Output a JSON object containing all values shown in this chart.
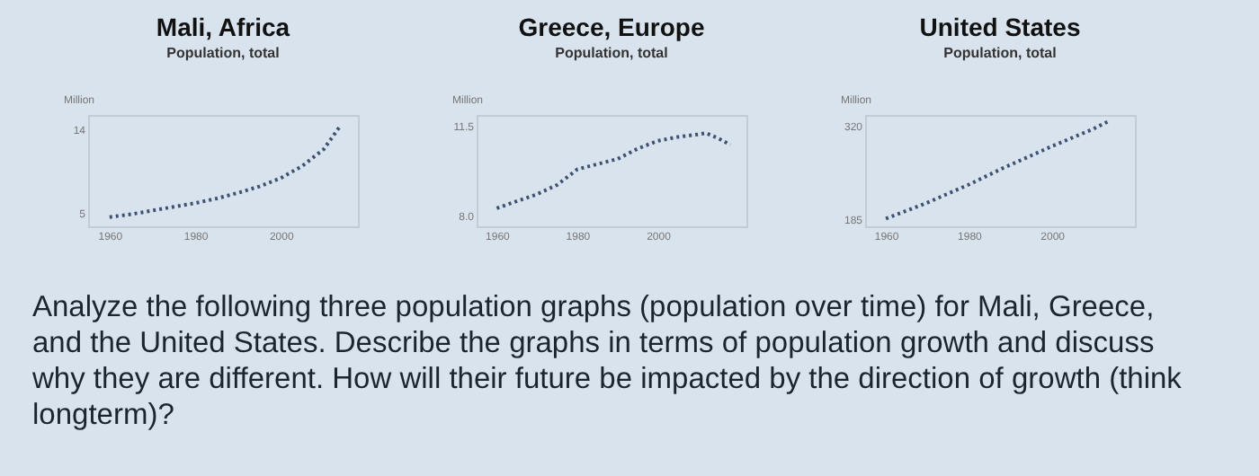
{
  "chart_data": [
    {
      "type": "line",
      "title": "Mali, Africa",
      "subtitle": "Population, total",
      "ylabel": "Million",
      "color": "#3d5273",
      "line_style": "dotted",
      "grid": false,
      "x": [
        1960,
        1965,
        1970,
        1975,
        1980,
        1985,
        1990,
        1995,
        2000,
        2005,
        2010,
        2014
      ],
      "values": [
        4.5,
        4.8,
        5.2,
        5.6,
        6.0,
        6.5,
        7.1,
        7.8,
        8.7,
        10.0,
        11.8,
        14.4
      ],
      "xlim": [
        1955,
        2018
      ],
      "xticks": [
        1960,
        1980,
        2000
      ],
      "ylim": [
        3.5,
        15.5
      ],
      "yticks": [
        5,
        14
      ]
    },
    {
      "type": "line",
      "title": "Greece, Europe",
      "subtitle": "Population, total",
      "ylabel": "Million",
      "color": "#3d5273",
      "line_style": "dotted",
      "grid": false,
      "x": [
        1960,
        1970,
        1975,
        1980,
        1985,
        1990,
        1995,
        2000,
        2005,
        2010,
        2012,
        2015,
        2018
      ],
      "values": [
        8.3,
        8.84,
        9.2,
        9.8,
        10.0,
        10.2,
        10.6,
        10.9,
        11.05,
        11.15,
        11.2,
        11.0,
        10.75
      ],
      "xlim": [
        1955,
        2022
      ],
      "xticks": [
        1960,
        1980,
        2000
      ],
      "ylim": [
        7.6,
        11.9
      ],
      "yticks": [
        {
          "value": 8,
          "label": "8.0"
        },
        11.5
      ]
    },
    {
      "type": "line",
      "title": "United States",
      "subtitle": "Population, total",
      "ylabel": "Million",
      "color": "#3d5273",
      "line_style": "dotted",
      "grid": false,
      "x": [
        1960,
        1970,
        1980,
        1988,
        2000,
        2010,
        2014
      ],
      "values": [
        186,
        209,
        235,
        258,
        290,
        315,
        327
      ],
      "xlim": [
        1955,
        2020
      ],
      "xticks": [
        1960,
        1980,
        2000
      ],
      "ylim": [
        175,
        335
      ],
      "yticks": [
        185,
        320
      ]
    },
    {
      "type": "other",
      "annotations": [
        "Analyze the following three population graphs (population over time) for Mali, Greece, and the United States. Describe the graphs in terms of population growth and discuss why they are different. How will their future be impacted by the direction of growth (think longterm)?"
      ]
    }
  ]
}
